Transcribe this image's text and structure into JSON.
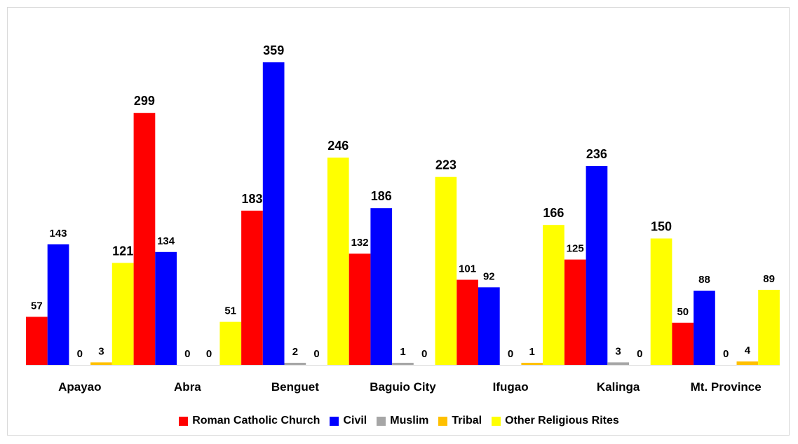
{
  "chart_data": {
    "type": "bar",
    "categories": [
      "Apayao",
      "Abra",
      "Benguet",
      "Baguio City",
      "Ifugao",
      "Kalinga",
      "Mt. Province"
    ],
    "series": [
      {
        "name": "Roman Catholic Church",
        "color": "#ff0000",
        "values": [
          57,
          299,
          183,
          132,
          101,
          125,
          50
        ]
      },
      {
        "name": "Civil",
        "color": "#0000ff",
        "values": [
          143,
          134,
          359,
          186,
          92,
          236,
          88
        ]
      },
      {
        "name": "Muslim",
        "color": "#a6a6a6",
        "values": [
          0,
          0,
          2,
          1,
          0,
          3,
          0
        ]
      },
      {
        "name": "Tribal",
        "color": "#ffc000",
        "values": [
          3,
          0,
          0,
          0,
          1,
          0,
          4
        ]
      },
      {
        "name": "Other Religious Rites",
        "color": "#ffff00",
        "values": [
          121,
          51,
          246,
          223,
          166,
          150,
          89
        ]
      }
    ],
    "ylim": [
      0,
      370
    ],
    "grid": false,
    "legend_position": "bottom",
    "title": "",
    "xlabel": "",
    "ylabel": ""
  }
}
